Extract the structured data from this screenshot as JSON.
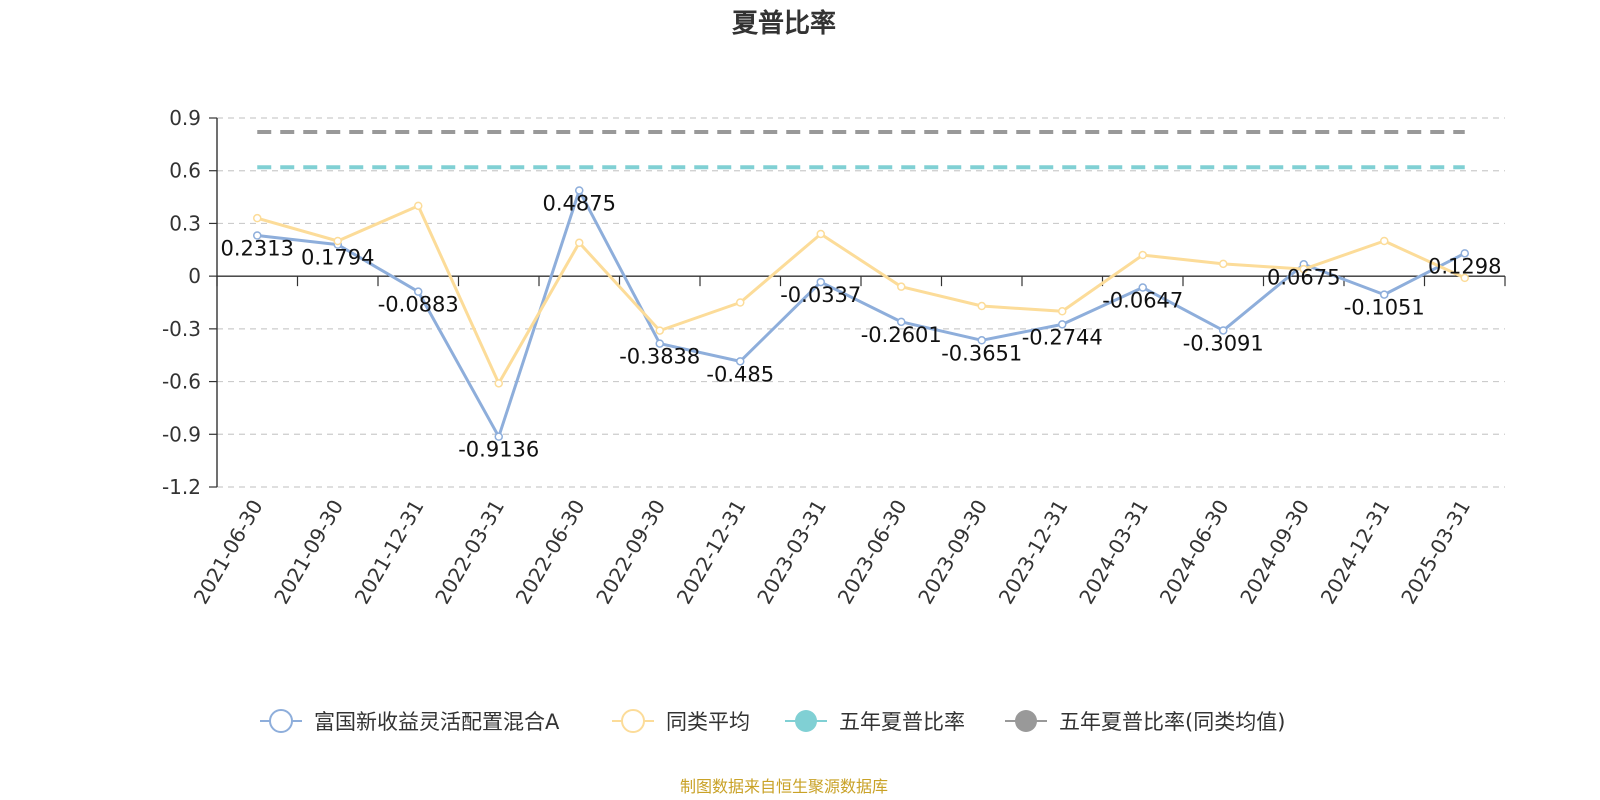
{
  "chart_data": {
    "type": "line",
    "title": "夏普比率",
    "xlabel": "",
    "ylabel": "",
    "ylim": [
      -1.2,
      0.9
    ],
    "yticks": [
      0.9,
      0.6,
      0.3,
      0,
      -0.3,
      -0.6,
      -0.9,
      -1.2
    ],
    "ytick_labels": [
      "0.9",
      "0.6",
      "0.3",
      "0",
      "-0.3",
      "-0.6",
      "-0.9",
      "-1.2"
    ],
    "grid": true,
    "legend_position": "bottom",
    "categories": [
      "2021-06-30",
      "2021-09-30",
      "2021-12-31",
      "2022-03-31",
      "2022-06-30",
      "2022-09-30",
      "2022-12-31",
      "2023-03-31",
      "2023-06-30",
      "2023-09-30",
      "2023-12-31",
      "2024-03-31",
      "2024-06-30",
      "2024-09-30",
      "2024-12-31",
      "2025-03-31"
    ],
    "series": [
      {
        "name": "富国新收益灵活配置混合A",
        "color": "#8eaedb",
        "style": "line",
        "values": [
          0.2313,
          0.1794,
          -0.0883,
          -0.9136,
          0.4875,
          -0.3838,
          -0.485,
          -0.0337,
          -0.2601,
          -0.3651,
          -0.2744,
          -0.0647,
          -0.3091,
          0.0675,
          -0.1051,
          0.1298
        ],
        "labels": [
          "0.2313",
          "0.1794",
          "-0.0883",
          "-0.9136",
          "0.4875",
          "-0.3838",
          "-0.485",
          "-0.0337",
          "-0.2601",
          "-0.3651",
          "-0.2744",
          "-0.0647",
          "-0.3091",
          "0.0675",
          "-0.1051",
          "0.1298"
        ]
      },
      {
        "name": "同类平均",
        "color": "#fcdc99",
        "style": "line",
        "values": [
          0.33,
          0.2,
          0.4,
          -0.61,
          0.19,
          -0.31,
          -0.15,
          0.24,
          -0.06,
          -0.17,
          -0.2,
          0.12,
          0.07,
          0.04,
          0.2,
          -0.01
        ]
      },
      {
        "name": "五年夏普比率",
        "color": "#80d0d4",
        "style": "dashed",
        "value": 0.62
      },
      {
        "name": "五年夏普比率(同类均值)",
        "color": "#999999",
        "style": "dashed",
        "value": 0.82
      }
    ]
  },
  "source_text": "制图数据来自恒生聚源数据库"
}
